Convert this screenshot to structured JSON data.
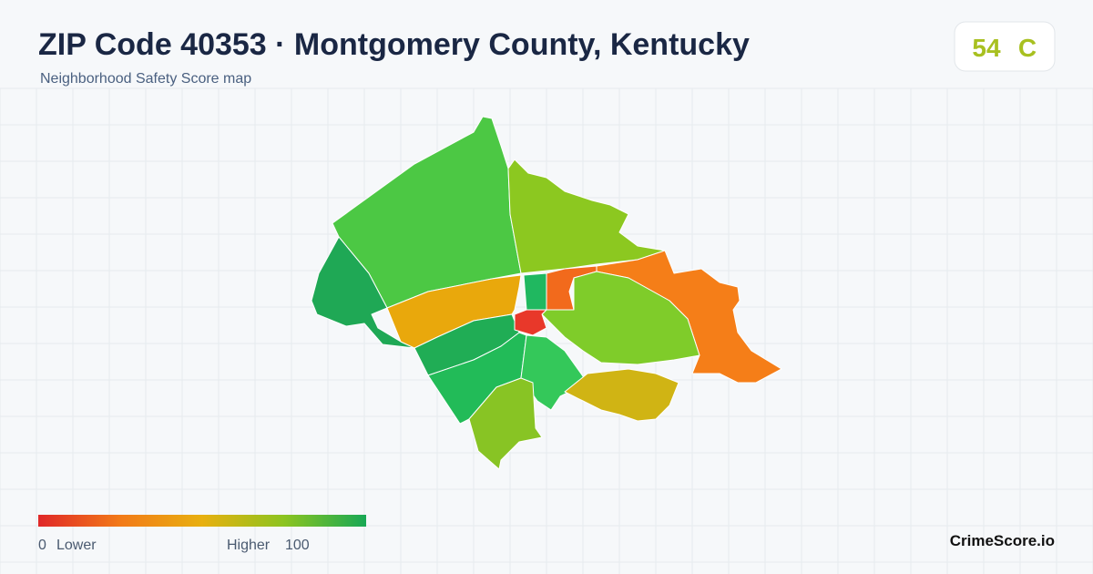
{
  "header": {
    "title": "ZIP Code 40353 · Montgomery County, Kentucky",
    "subtitle": "Neighborhood Safety Score map"
  },
  "score": {
    "value": 54,
    "grade": "C"
  },
  "legend": {
    "min": 0,
    "min_label": "Lower",
    "max_label": "Higher",
    "max": 100
  },
  "footer": {
    "brand": "CrimeScore.io"
  }
}
